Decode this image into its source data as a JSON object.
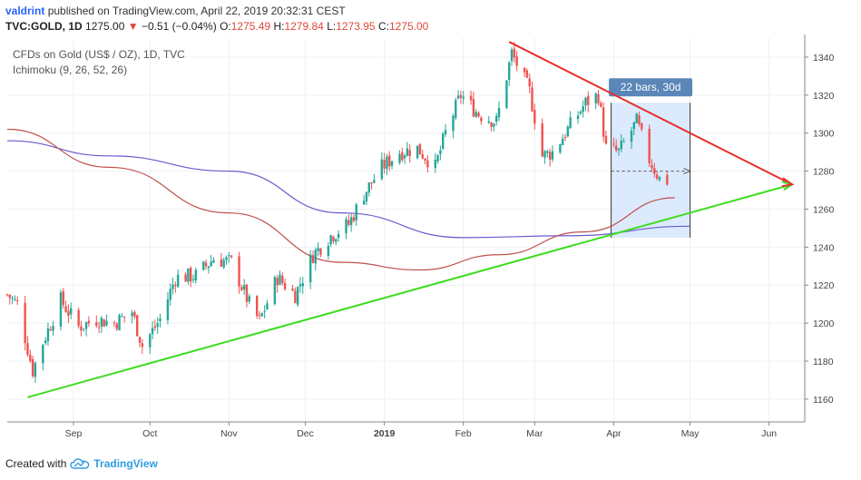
{
  "header": {
    "user": "valdrint",
    "published_text": "published on TradingView.com, April 22, 2019 20:32:31 CEST",
    "symbol": "TVC:GOLD, 1D",
    "last": "1275.00",
    "arrow": "▼",
    "change": "−0.51 (−0.04%)",
    "o_label": "O:",
    "o": "1275.49",
    "h_label": "H:",
    "h": "1279.84",
    "l_label": "L:",
    "l": "1273.95",
    "c_label": "C:",
    "c": "1275.00"
  },
  "footer": {
    "created_with": "Created with",
    "brand": "TradingView",
    "logo_icon": "tradingview-cloud-icon"
  },
  "chart_data": {
    "type": "candlestick",
    "legend": [
      "CFDs on Gold (US$ / OZ), 1D, TVC",
      "Ichimoku (9, 26, 52, 26)"
    ],
    "x_ticks": [
      "Sep",
      "Oct",
      "Nov",
      "Dec",
      "2019",
      "Feb",
      "Mar",
      "Apr",
      "May",
      "Jun"
    ],
    "y_ticks": [
      1160,
      1180,
      1200,
      1220,
      1240,
      1260,
      1280,
      1300,
      1320,
      1340
    ],
    "ylim": [
      1148,
      1350
    ],
    "x_range": [
      "2018-08-06",
      "2019-06-15"
    ],
    "grid": true,
    "colors": {
      "up": "#26a69a",
      "down": "#ef5350",
      "support": "#3ddc1f",
      "resistance": "#e53030",
      "ma_blue": "#6a5acd",
      "ma_red": "#c0504d",
      "box": "#cfe3fb",
      "badge": "#5b86b8"
    },
    "price_path": [
      [
        "2018-08-06",
        1215
      ],
      [
        "2018-08-10",
        1210
      ],
      [
        "2018-08-16",
        1175
      ],
      [
        "2018-08-20",
        1190
      ],
      [
        "2018-08-27",
        1212
      ],
      [
        "2018-09-03",
        1198
      ],
      [
        "2018-09-10",
        1202
      ],
      [
        "2018-09-17",
        1200
      ],
      [
        "2018-09-24",
        1206
      ],
      [
        "2018-09-28",
        1188
      ],
      [
        "2018-10-05",
        1202
      ],
      [
        "2018-10-11",
        1224
      ],
      [
        "2018-10-19",
        1225
      ],
      [
        "2018-10-26",
        1234
      ],
      [
        "2018-11-02",
        1232
      ],
      [
        "2018-11-09",
        1210
      ],
      [
        "2018-11-13",
        1201
      ],
      [
        "2018-11-20",
        1224
      ],
      [
        "2018-11-27",
        1215
      ],
      [
        "2018-12-04",
        1236
      ],
      [
        "2018-12-11",
        1246
      ],
      [
        "2018-12-18",
        1252
      ],
      [
        "2018-12-24",
        1268
      ],
      [
        "2018-12-31",
        1282
      ],
      [
        "2019-01-07",
        1290
      ],
      [
        "2019-01-14",
        1292
      ],
      [
        "2019-01-21",
        1282
      ],
      [
        "2019-01-25",
        1300
      ],
      [
        "2019-01-31",
        1320
      ],
      [
        "2019-02-07",
        1310
      ],
      [
        "2019-02-14",
        1306
      ],
      [
        "2019-02-20",
        1342
      ],
      [
        "2019-02-27",
        1322
      ],
      [
        "2019-03-04",
        1288
      ],
      [
        "2019-03-08",
        1290
      ],
      [
        "2019-03-14",
        1302
      ],
      [
        "2019-03-21",
        1316
      ],
      [
        "2019-03-26",
        1320
      ],
      [
        "2019-03-29",
        1292
      ],
      [
        "2019-04-03",
        1290
      ],
      [
        "2019-04-10",
        1306
      ],
      [
        "2019-04-15",
        1286
      ],
      [
        "2019-04-19",
        1276
      ],
      [
        "2019-04-22",
        1275
      ]
    ],
    "ma_blue": [
      [
        "2018-08-06",
        1296
      ],
      [
        "2018-09-15",
        1288
      ],
      [
        "2018-11-01",
        1280
      ],
      [
        "2018-12-15",
        1258
      ],
      [
        "2019-02-01",
        1245
      ],
      [
        "2019-03-15",
        1246
      ],
      [
        "2019-05-01",
        1251
      ]
    ],
    "ma_red": [
      [
        "2018-08-06",
        1302
      ],
      [
        "2018-09-15",
        1282
      ],
      [
        "2018-11-01",
        1258
      ],
      [
        "2018-12-15",
        1232
      ],
      [
        "2019-01-15",
        1228
      ],
      [
        "2019-02-15",
        1236
      ],
      [
        "2019-03-20",
        1248
      ],
      [
        "2019-04-25",
        1266
      ]
    ],
    "support_line": [
      [
        "2018-08-14",
        1161
      ],
      [
        "2019-06-10",
        1273
      ]
    ],
    "resistance_line": [
      [
        "2019-02-19",
        1348
      ],
      [
        "2019-06-10",
        1273
      ]
    ],
    "date_range_box": {
      "start": "2019-03-31",
      "end": "2019-05-01",
      "low": 1245,
      "high": 1316,
      "label": "22 bars, 30d",
      "projection_price": 1280
    }
  }
}
